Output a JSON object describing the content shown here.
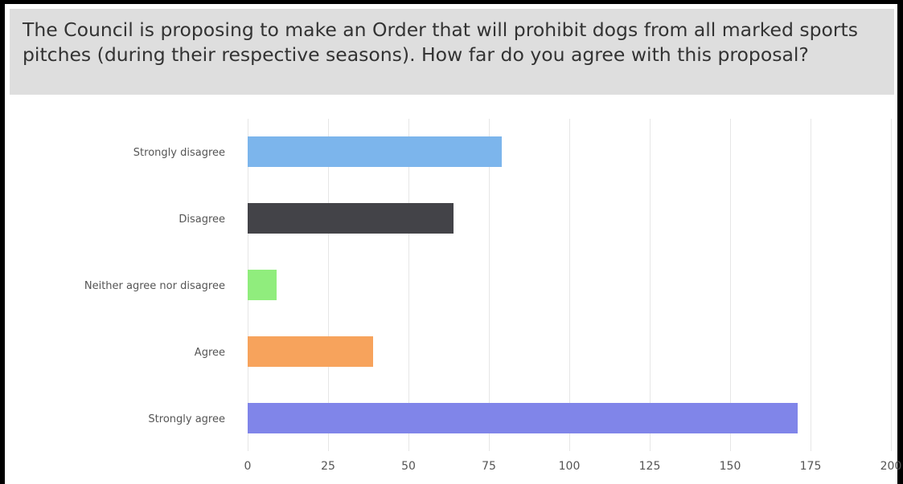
{
  "question": "The Council is proposing to make an Order that will prohibit dogs from all marked sports pitches (during their respective seasons). How far do you agree with this proposal?",
  "chart_data": {
    "type": "bar",
    "orientation": "horizontal",
    "categories": [
      "Strongly disagree",
      "Disagree",
      "Neither agree nor disagree",
      "Agree",
      "Strongly agree"
    ],
    "values": [
      79,
      64,
      9,
      39,
      171
    ],
    "colors": [
      "#7cb5ec",
      "#434348",
      "#90ed7d",
      "#f7a35c",
      "#8085e9"
    ],
    "xlim": [
      0,
      200
    ],
    "xticks": [
      0,
      25,
      50,
      75,
      100,
      125,
      150,
      175,
      200
    ],
    "grid": true,
    "legend": false
  }
}
